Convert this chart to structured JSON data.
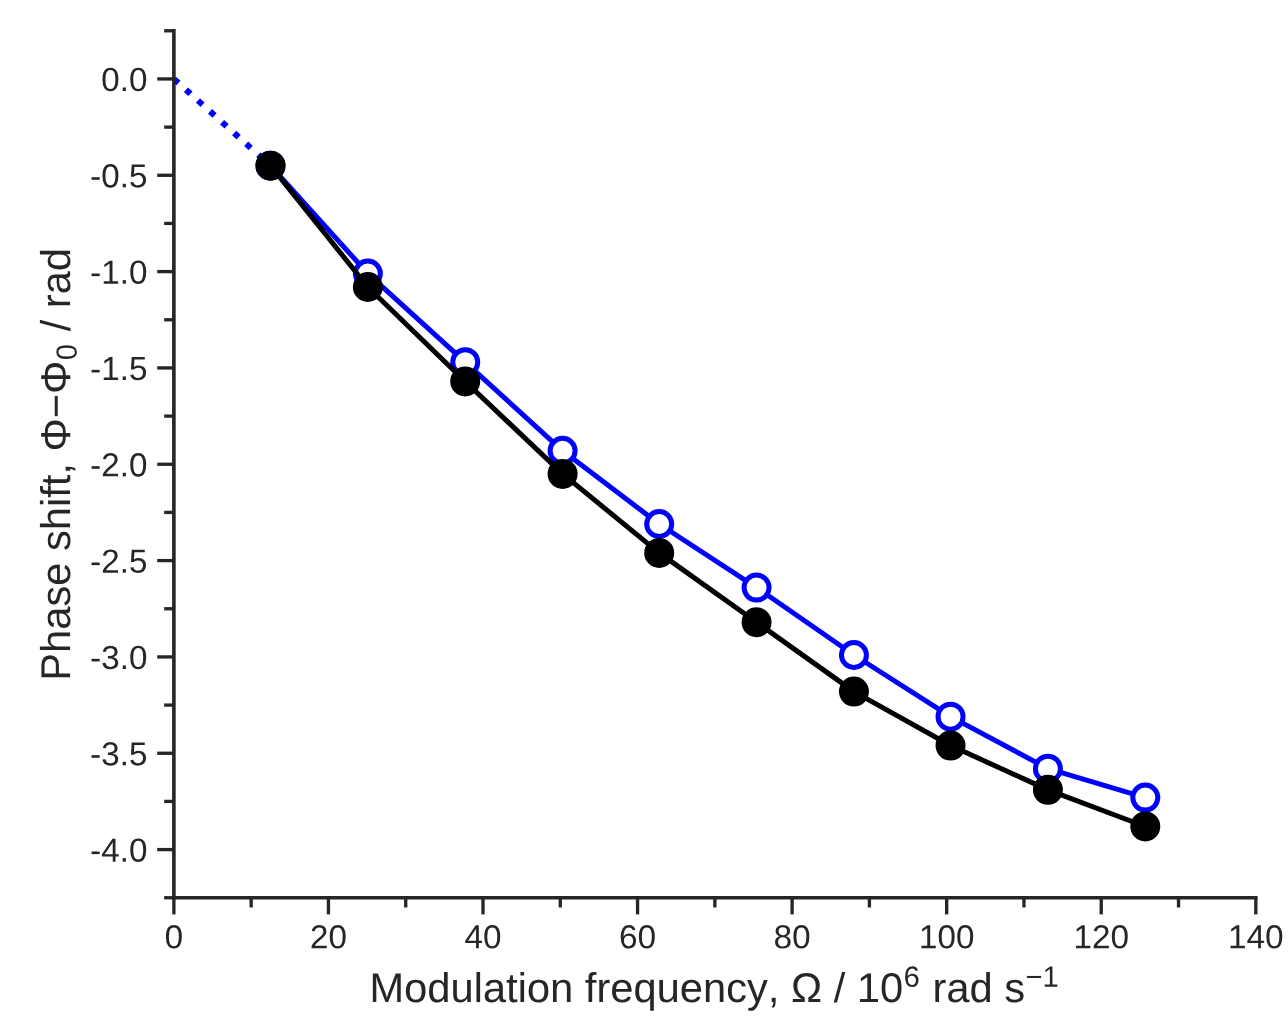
{
  "chart_data": {
    "type": "line",
    "xlabel": "Modulation frequency, Ω / 10$^{6}$ rad s$^{−1}$",
    "ylabel": "Phase shift, Φ−Φ$_{0}$ / rad",
    "xlim": [
      0,
      140
    ],
    "xticks": [
      0,
      20,
      40,
      60,
      80,
      100,
      120,
      140
    ],
    "ylim": [
      -4.25,
      0.25
    ],
    "yticks": [
      {
        "value": 0,
        "label": "0.0"
      },
      {
        "value": -0.5,
        "label": "-0.5"
      },
      {
        "value": -1,
        "label": "-1.0"
      },
      {
        "value": -1.5,
        "label": "-1.5"
      },
      {
        "value": -2,
        "label": "-2.0"
      },
      {
        "value": -2.5,
        "label": "-2.5"
      },
      {
        "value": -3,
        "label": "-3.0"
      },
      {
        "value": -3.5,
        "label": "-3.5"
      },
      {
        "value": -4,
        "label": "-4.0"
      }
    ],
    "grid": false,
    "legend": false,
    "series": [
      {
        "color": "#0000ff",
        "line_style": "dotted",
        "x": [
          0,
          12.5
        ],
        "values": [
          0,
          -0.45
        ]
      },
      {
        "color": "#0000ff",
        "marker": "circle",
        "line_style": "solid",
        "x": [
          12.5,
          25.1,
          37.7,
          50.3,
          62.8,
          75.4,
          88.0,
          100.5,
          113.1,
          125.7
        ],
        "values": [
          -0.45,
          -1.01,
          -1.47,
          -1.93,
          -2.31,
          -2.64,
          -2.99,
          -3.31,
          -3.58,
          -3.73
        ]
      },
      {
        "color": "#000000",
        "marker": "circle",
        "line_style": "solid",
        "x": [
          12.5,
          25.1,
          37.7,
          50.3,
          62.8,
          75.4,
          88.0,
          100.5,
          113.1,
          125.7
        ],
        "values": [
          -0.45,
          -1.08,
          -1.57,
          -2.05,
          -2.46,
          -2.82,
          -3.18,
          -3.46,
          -3.69,
          -3.88
        ]
      }
    ]
  }
}
